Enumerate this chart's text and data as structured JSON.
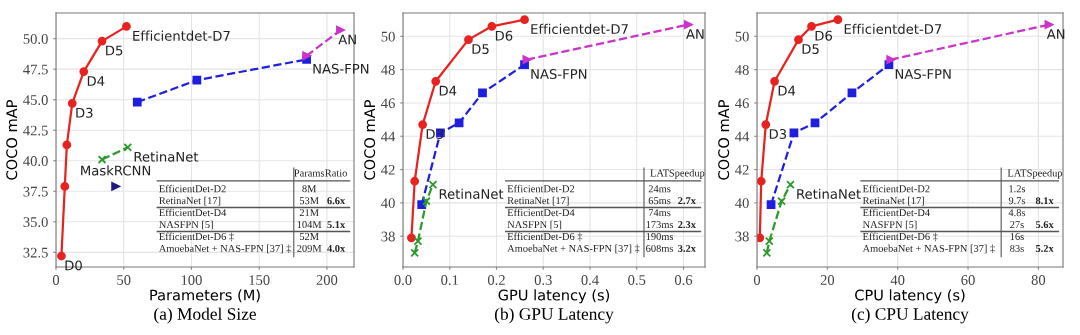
{
  "chart_data": [
    {
      "type": "line",
      "title": "(a) Model Size",
      "xlabel": "Parameters (M)",
      "ylabel": "COCO mAP",
      "xlim": [
        0,
        220
      ],
      "xticks": [
        0,
        50,
        100,
        150,
        200
      ],
      "ylim": [
        31.3,
        52.1
      ],
      "yticks": [
        32.5,
        {
          "value": 35,
          "label": "35.0"
        },
        37.5,
        {
          "value": 40,
          "label": "40.0"
        },
        42.5,
        {
          "value": 45,
          "label": "45.0"
        },
        47.5,
        {
          "value": 50,
          "label": "50.0"
        }
      ],
      "grid": true,
      "legend": false,
      "series": [
        {
          "name": "Efficientdet-D7",
          "color": "#e8231f",
          "marker": "circle",
          "line_style": "solid",
          "x": [
            4,
            6.5,
            8,
            12,
            20.5,
            34,
            52
          ],
          "values": [
            32.2,
            37.9,
            41.3,
            44.7,
            47.3,
            49.8,
            51.0
          ]
        },
        {
          "name": "NAS-FPN",
          "color": "#1f1fe0",
          "marker": "square",
          "line_style": "dashed",
          "x": [
            60,
            104,
            185
          ],
          "values": [
            44.8,
            46.6,
            48.3
          ]
        },
        {
          "name": "AN",
          "color": "#cc33cc",
          "marker": "triangle",
          "line_style": "dashed",
          "x": [
            185,
            210
          ],
          "values": [
            48.6,
            50.7
          ]
        },
        {
          "name": "RetinaNet",
          "color": "#2a9a2a",
          "marker": "cross",
          "line_style": "dashed",
          "x": [
            34,
            53
          ],
          "values": [
            40.1,
            41.1
          ]
        },
        {
          "name": "MaskRCNN",
          "type": "scatter",
          "color": "#1a1a80",
          "marker": "triangle",
          "x": [
            44
          ],
          "values": [
            37.9
          ]
        }
      ],
      "annotations": [
        {
          "text": "D0",
          "x": 4,
          "y": 32.2
        },
        {
          "text": "D3",
          "x": 12,
          "y": 44.7
        },
        {
          "text": "D4",
          "x": 20.5,
          "y": 47.3
        },
        {
          "text": "D5",
          "x": 34,
          "y": 49.8
        },
        null,
        "Params",
        "Ratio",
        "EfficientDet-D2",
        "8M",
        null,
        "RetinaNet [17]",
        "53M",
        "6.6x",
        "EfficientDet-D4",
        "21M",
        null,
        "NASFPN [5]",
        "104M",
        "5.1x",
        "EfficientDet-D6 ‡",
        "52M",
        null,
        "AmoebaNet + NAS-FPN [37] ‡",
        "209M",
        "4.0x"
      ]
    },
    {
      "type": "line",
      "title": "(b) GPU Latency",
      "xlabel": "GPU latency (s)",
      "ylabel": "COCO mAP",
      "xlim": [
        0,
        0.646
      ],
      "xticks": [
        {
          "value": 0,
          "label": "0.0"
        },
        0.1,
        0.2,
        0.3,
        0.4,
        0.5,
        0.6
      ],
      "ylim": [
        36.15,
        51.4
      ],
      "yticks": [
        38,
        40,
        42,
        44,
        46,
        48,
        50
      ],
      "grid": true,
      "legend": false,
      "series": [
        {
          "name": "Efficientdet-D7",
          "color": "#e8231f",
          "marker": "circle",
          "line_style": "solid",
          "x": [
            0.018,
            0.025,
            0.042,
            0.07,
            0.14,
            0.19,
            0.26
          ],
          "values": [
            37.9,
            41.3,
            44.7,
            47.3,
            49.8,
            50.6,
            51.0
          ]
        },
        {
          "name": "NAS-FPN",
          "color": "#1f1fe0",
          "marker": "square",
          "line_style": "dashed",
          "x": [
            0.04,
            0.08,
            0.12,
            0.17,
            0.26
          ],
          "values": [
            39.9,
            44.2,
            44.8,
            46.6,
            48.3
          ]
        },
        {
          "name": "AN",
          "color": "#cc33cc",
          "marker": "triangle",
          "line_style": "dashed",
          "x": [
            0.265,
            0.61
          ],
          "values": [
            48.6,
            50.7
          ]
        },
        {
          "name": "RetinaNet",
          "color": "#2a9a2a",
          "marker": "cross",
          "line_style": "dashed",
          "x": [
            0.025,
            0.032,
            0.05,
            0.064
          ],
          "values": [
            37.0,
            37.7,
            40.1,
            41.1
          ]
        }
      ],
      "annotations": [
        {
          "text": "D3",
          "x": 0.042,
          "y": 44.7
        },
        {
          "text": "D4",
          "x": 0.07,
          "y": 47.3
        },
        {
          "text": "D5",
          "x": 0.14,
          "y": 49.8
        },
        {
          "text": "D6",
          "x": 0.19,
          "y": 50.6
        },
        null,
        "LAT",
        "Speedup",
        "EfficientDet-D2",
        "24ms",
        null,
        "RetinaNet [17]",
        "65ms",
        "2.7x",
        "EfficientDet-D4",
        "74ms",
        null,
        "NASFPN [5]",
        "173ms",
        "2.3x",
        "EfficientDet-D6 ‡",
        "190ms",
        null,
        "AmoebaNet + NAS-FPN [37] ‡",
        "608ms",
        "3.2x"
      ]
    },
    {
      "type": "line",
      "title": "(c) CPU Latency",
      "xlabel": "CPU latency (s)",
      "ylabel": "COCO mAP",
      "xlim": [
        0,
        87
      ],
      "xticks": [
        0,
        20,
        40,
        60,
        80
      ],
      "ylim": [
        36.15,
        51.4
      ],
      "yticks": [
        38,
        40,
        42,
        44,
        46,
        48,
        50
      ],
      "grid": true,
      "legend": false,
      "series": [
        {
          "name": "Efficientdet-D7",
          "color": "#e8231f",
          "marker": "circle",
          "line_style": "solid",
          "x": [
            0.8,
            1.2,
            2.5,
            5,
            11.8,
            15.5,
            23
          ],
          "values": [
            37.9,
            41.3,
            44.7,
            47.3,
            49.8,
            50.6,
            51.0
          ]
        },
        {
          "name": "NAS-FPN",
          "color": "#1f1fe0",
          "marker": "square",
          "line_style": "dashed",
          "x": [
            4,
            10.5,
            16.5,
            27,
            37.5
          ],
          "values": [
            39.9,
            44.2,
            44.8,
            46.6,
            48.3
          ]
        },
        {
          "name": "AN",
          "color": "#cc33cc",
          "marker": "triangle",
          "line_style": "dashed",
          "x": [
            38,
            83
          ],
          "values": [
            48.6,
            50.7
          ]
        },
        {
          "name": "RetinaNet",
          "color": "#2a9a2a",
          "marker": "cross",
          "line_style": "dashed",
          "x": [
            2.8,
            3.5,
            7,
            9.5
          ],
          "values": [
            37.0,
            37.7,
            40.1,
            41.1
          ]
        }
      ],
      "annotations": [
        {
          "text": "D3",
          "x": 2.5,
          "y": 44.7
        },
        {
          "text": "D4",
          "x": 5,
          "y": 47.3
        },
        {
          "text": "D5",
          "x": 11.8,
          "y": 49.8
        },
        {
          "text": "D6",
          "x": 15.5,
          "y": 50.6
        },
        null,
        "LAT",
        "Speedup",
        "EfficientDet-D2",
        "1.2s",
        null,
        "RetinaNet [17]",
        "9.7s",
        "8.1x",
        "EfficientDet-D4",
        "4.8s",
        null,
        "NASFPN [5]",
        "27s",
        "5.6x",
        "EfficientDet-D6 ‡",
        "16s",
        null,
        "AmoebaNet + NAS-FPN [37] ‡",
        "83s",
        "5.2x"
      ]
    }
  ]
}
